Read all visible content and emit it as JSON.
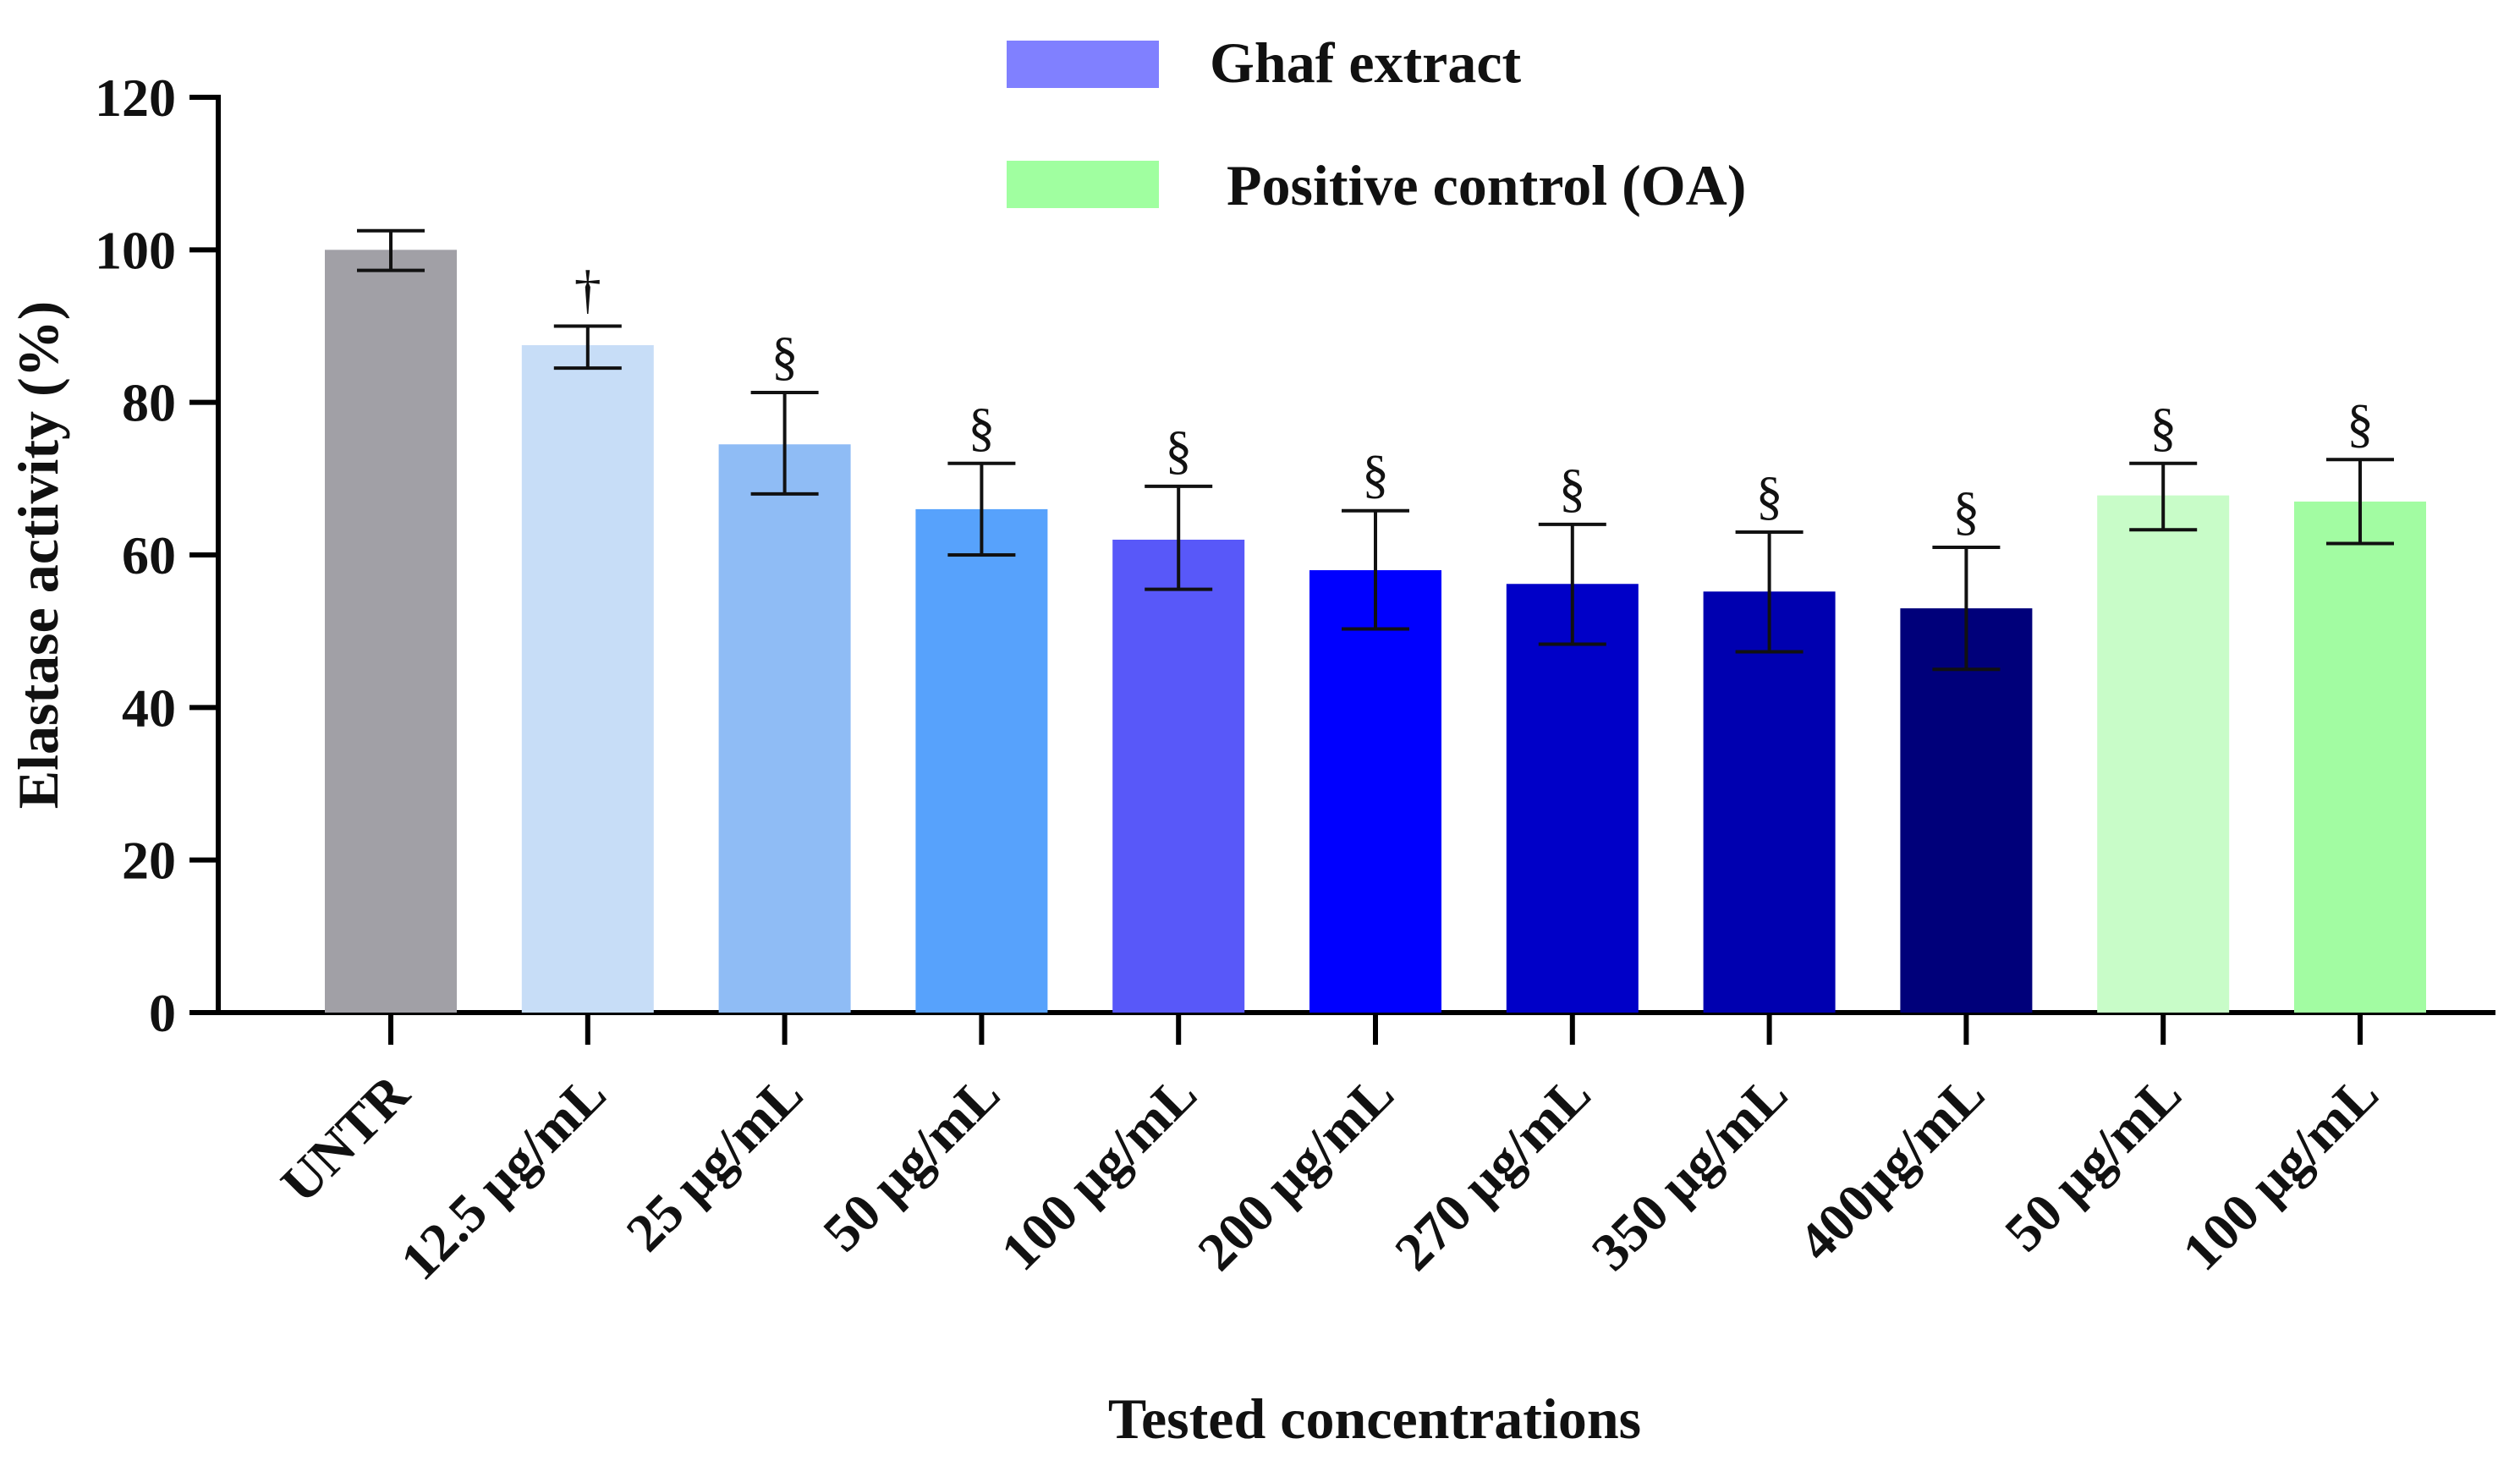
{
  "chart_data": {
    "type": "bar",
    "title": "",
    "xlabel": "Tested concentrations",
    "ylabel": "Elastase activity (%)",
    "ylim": [
      0,
      120
    ],
    "yticks": [
      0,
      20,
      40,
      60,
      80,
      100,
      120
    ],
    "grid": false,
    "legend_position": "top-center",
    "legend": [
      {
        "label": "Ghaf extract",
        "color": "#8080ff"
      },
      {
        "label": "Positive control (OA)",
        "color": "#a0ffa0"
      }
    ],
    "categories": [
      "UNTR",
      "12.5 µg/mL",
      "25 µg/mL",
      "50 µg/mL",
      "100 µg/mL",
      "200 µg/mL",
      "270 µg/mL",
      "350 µg/mL",
      "400µg/mL",
      "50 µg/mL",
      "100 µg/mL"
    ],
    "values": [
      100,
      87.5,
      74.5,
      66,
      62,
      58,
      56.2,
      55.2,
      53,
      67.8,
      67
    ],
    "error_low": [
      97.3,
      84.5,
      68,
      60,
      55.5,
      50.3,
      48.3,
      47.3,
      45,
      63.3,
      61.5
    ],
    "error_high": [
      102.5,
      90,
      81.3,
      72,
      69,
      65.8,
      64,
      63,
      61,
      72,
      72.5
    ],
    "annotations": [
      "",
      "†",
      "§",
      "§",
      "§",
      "§",
      "§",
      "§",
      "§",
      "§",
      "§"
    ],
    "bar_colors": [
      "#a1a0a6",
      "#c7ddf7",
      "#8fbcf5",
      "#57a2fc",
      "#5858f9",
      "#0000ff",
      "#0000c8",
      "#0000b0",
      "#00007a",
      "#c8fcc8",
      "#a2fca2"
    ]
  }
}
